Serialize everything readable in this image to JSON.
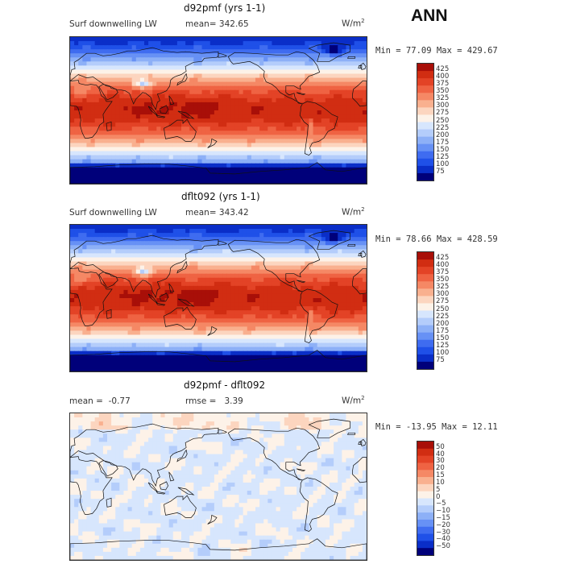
{
  "season": "ANN",
  "units_label": "W/m",
  "units_exponent": "2",
  "colors": {
    "abs_scale": [
      "#00007a",
      "#0a2ec8",
      "#1f50e8",
      "#3f6cf0",
      "#6791f5",
      "#8db0f7",
      "#b4cdfb",
      "#d7e6fd",
      "#fdf2e8",
      "#fcd5bf",
      "#f9b08f",
      "#f58865",
      "#ef6343",
      "#e34326",
      "#d12d12",
      "#a80f08",
      "#8a0000"
    ],
    "anom_scale": [
      "#00007a",
      "#0a2ec8",
      "#1f50e8",
      "#3f6cf0",
      "#6791f5",
      "#8db0f7",
      "#b4cdfb",
      "#d7e6fd",
      "#fdf2e8",
      "#fcd5bf",
      "#f9b08f",
      "#f58865",
      "#ef6343",
      "#e34326",
      "#d12d12",
      "#a80f08"
    ]
  },
  "chart_data": [
    {
      "type": "heatmap",
      "title": "d92pmf (yrs 1-1)",
      "subtitle_left": "Surf downwelling LW",
      "mean_label": "mean=",
      "mean": "342.65",
      "stats": "Min =  77.09 Max = 429.67",
      "min": 77.09,
      "max": 429.67,
      "colorbar_levels": [
        "425",
        "400",
        "375",
        "350",
        "325",
        "300",
        "275",
        "250",
        "225",
        "200",
        "175",
        "150",
        "125",
        "100",
        "75"
      ]
    },
    {
      "type": "heatmap",
      "title": "dflt092 (yrs 1-1)",
      "subtitle_left": "Surf downwelling LW",
      "mean_label": "mean=",
      "mean": "343.42",
      "stats": "Min =  78.66 Max = 428.59",
      "min": 78.66,
      "max": 428.59,
      "colorbar_levels": [
        "425",
        "400",
        "375",
        "350",
        "325",
        "300",
        "275",
        "250",
        "225",
        "200",
        "175",
        "150",
        "125",
        "100",
        "75"
      ]
    },
    {
      "type": "heatmap",
      "title": "d92pmf - dflt092",
      "mean_label": "mean =",
      "mean": "-0.77",
      "rmse_label": "rmse =",
      "rmse": "3.39",
      "stats": "Min = -13.95 Max =  12.11",
      "min": -13.95,
      "max": 12.11,
      "colorbar_levels": [
        "50",
        "40",
        "30",
        "20",
        "15",
        "10",
        "5",
        "0",
        "−5",
        "−10",
        "−15",
        "−20",
        "−30",
        "−40",
        "−50"
      ]
    }
  ]
}
